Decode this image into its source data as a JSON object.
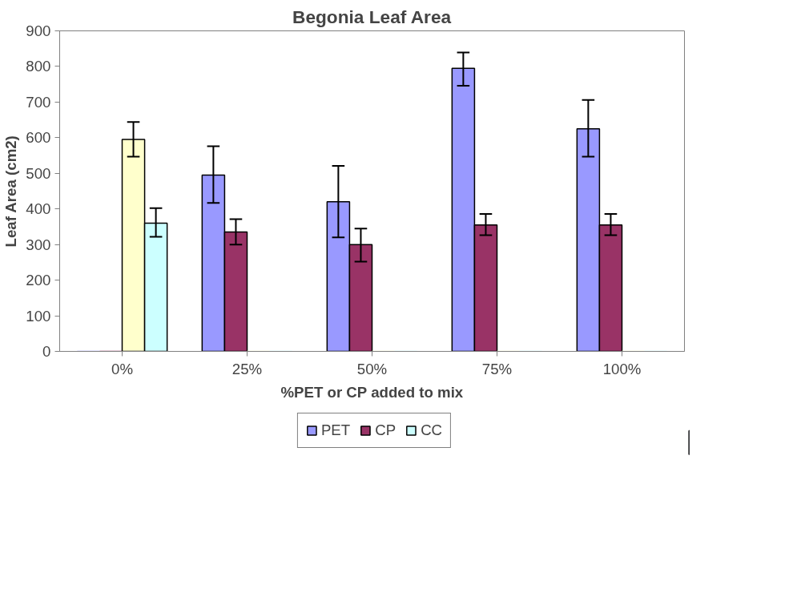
{
  "chart_data": {
    "type": "bar",
    "title": "Begonia Leaf Area",
    "xlabel": "%PET or CP added to mix",
    "ylabel": "Leaf Area (cm2)",
    "categories": [
      "0%",
      "25%",
      "50%",
      "75%",
      "100%"
    ],
    "series": [
      {
        "name": "PET",
        "color": "#9999ff",
        "values": [
          0,
          495,
          420,
          795,
          625
        ],
        "errors": [
          null,
          [
            417,
            576
          ],
          [
            320,
            521
          ],
          [
            746,
            839
          ],
          [
            547,
            706
          ]
        ]
      },
      {
        "name": "CP",
        "color": "#993366",
        "values": [
          0,
          335,
          300,
          355,
          355
        ],
        "errors": [
          null,
          [
            300,
            371
          ],
          [
            252,
            345
          ],
          [
            326,
            386
          ],
          [
            326,
            386
          ]
        ]
      },
      {
        "color": "#ffffcc",
        "values": [
          595,
          0,
          0,
          0,
          0
        ],
        "errors": [
          [
            547,
            644
          ],
          null,
          null,
          null,
          null
        ]
      },
      {
        "name": "CC",
        "color": "#ccffff",
        "values": [
          360,
          0,
          0,
          0,
          0
        ],
        "errors": [
          [
            322,
            402
          ],
          null,
          null,
          null,
          null
        ]
      }
    ],
    "ylim": [
      0,
      900
    ],
    "yticks": [
      0,
      100,
      200,
      300,
      400,
      500,
      600,
      700,
      800,
      900
    ],
    "grid": false,
    "legend": "bottom"
  }
}
